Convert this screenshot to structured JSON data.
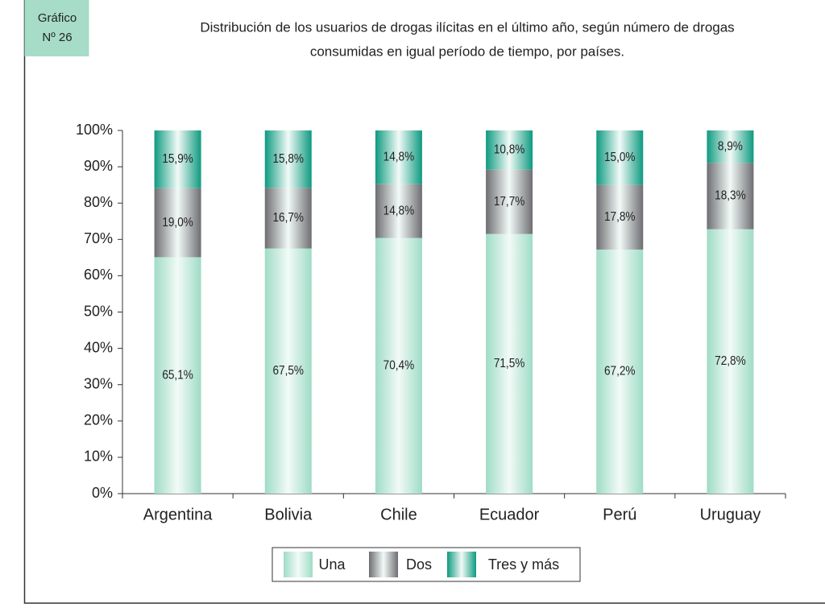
{
  "chart_data": {
    "type": "stacked_bar",
    "badge": [
      "Gráfico",
      "Nº 26"
    ],
    "title": [
      "Distribución de los usuarios de drogas ilícitas en el último año, según número de drogas",
      "consumidas en igual período de tiempo, por países."
    ],
    "categories": [
      "Argentina",
      "Bolivia",
      "Chile",
      "Ecuador",
      "Perú",
      "Uruguay"
    ],
    "series": [
      {
        "name": "Una",
        "color": "#9fdcc6",
        "values": [
          65.1,
          67.5,
          70.4,
          71.5,
          67.2,
          72.8
        ],
        "value_labels": [
          "65,1%",
          "67,5%",
          "70,4%",
          "71,5%",
          "67,2%",
          "72,8%"
        ]
      },
      {
        "name": "Dos",
        "color": "#6e6e72",
        "values": [
          19.0,
          16.7,
          14.8,
          17.7,
          17.8,
          18.3
        ],
        "value_labels": [
          "19,0%",
          "16,7%",
          "14,8%",
          "17,7%",
          "17,8%",
          "18,3%"
        ]
      },
      {
        "name": "Tres y más",
        "color": "#0e9a80",
        "values": [
          15.9,
          15.8,
          14.8,
          10.8,
          15.0,
          8.9
        ],
        "value_labels": [
          "15,9%",
          "15,8%",
          "14,8%",
          "10,8%",
          "15,0%",
          "8,9%"
        ]
      }
    ],
    "ylim": [
      0,
      100
    ],
    "yticks": [
      {
        "value": 0,
        "label": "0%"
      },
      {
        "value": 10,
        "label": "10%"
      },
      {
        "value": 20,
        "label": "20%"
      },
      {
        "value": 30,
        "label": "30%"
      },
      {
        "value": 40,
        "label": "40%"
      },
      {
        "value": 50,
        "label": "50%"
      },
      {
        "value": 60,
        "label": "60%"
      },
      {
        "value": 70,
        "label": "70%"
      },
      {
        "value": 80,
        "label": "80%"
      },
      {
        "value": 90,
        "label": "90%"
      },
      {
        "value": 100,
        "label": "100%"
      }
    ],
    "legend": "bottom"
  }
}
